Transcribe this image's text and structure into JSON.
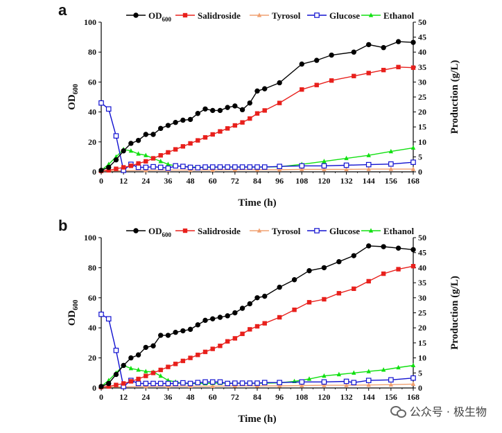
{
  "chart_data": [
    {
      "type": "line",
      "panel_label": "a",
      "xlabel": "Time (h)",
      "ylabel_left": {
        "main": "OD",
        "sub": "600"
      },
      "ylabel_right": "Production (g/L)",
      "xlim": [
        0,
        168
      ],
      "ylim_left": [
        0,
        100
      ],
      "ylim_right": [
        0,
        50
      ],
      "x_ticks": [
        "0",
        "12",
        "24",
        "36",
        "48",
        "60",
        "72",
        "84",
        "96",
        "108",
        "120",
        "132",
        "144",
        "156",
        "168"
      ],
      "y_left_ticks": [
        "0",
        "20",
        "40",
        "60",
        "80",
        "100"
      ],
      "y_right_ticks": [
        "0",
        "5",
        "10",
        "15",
        "20",
        "25",
        "30",
        "35",
        "40",
        "45",
        "50"
      ],
      "legend": [
        {
          "name": "OD",
          "sub": "600",
          "color": "#000000",
          "marker": "circle"
        },
        {
          "name": "Salidroside",
          "color": "#e8201c",
          "marker": "square"
        },
        {
          "name": "Tyrosol",
          "color": "#f0a070",
          "marker": "triangle"
        },
        {
          "name": "Glucose",
          "color": "#1010d0",
          "marker": "open-square"
        },
        {
          "name": "Ethanol",
          "color": "#10e010",
          "marker": "triangle"
        }
      ],
      "series": [
        {
          "name": "OD600",
          "axis": "left",
          "color": "#000000",
          "marker": "circle",
          "x": [
            0,
            4,
            8,
            12,
            16,
            20,
            24,
            28,
            32,
            36,
            40,
            44,
            48,
            52,
            56,
            60,
            64,
            68,
            72,
            76,
            80,
            84,
            88,
            96,
            108,
            116,
            124,
            136,
            144,
            152,
            160,
            168
          ],
          "y": [
            1,
            3,
            8,
            14,
            19,
            21,
            25,
            25,
            29,
            31,
            33,
            34.5,
            35,
            39,
            42,
            41,
            41,
            43,
            44,
            41.5,
            46,
            54,
            55.5,
            59.5,
            72,
            74.5,
            78,
            80,
            85,
            83,
            87,
            86.5
          ]
        },
        {
          "name": "Salidroside",
          "axis": "right",
          "color": "#e8201c",
          "marker": "square",
          "x": [
            0,
            4,
            8,
            12,
            16,
            20,
            24,
            28,
            32,
            36,
            40,
            44,
            48,
            52,
            56,
            60,
            64,
            68,
            72,
            76,
            80,
            84,
            88,
            96,
            108,
            116,
            124,
            136,
            144,
            152,
            160,
            168
          ],
          "y": [
            0.3,
            0.5,
            1,
            1.5,
            2,
            2.8,
            3.5,
            4.5,
            5.5,
            6.5,
            7.5,
            8.5,
            9.5,
            10.5,
            11.5,
            12.5,
            13.5,
            14.5,
            15.5,
            16.5,
            17.8,
            19.5,
            20.5,
            23,
            27.5,
            29,
            30.5,
            32,
            33,
            34,
            35,
            34.8
          ]
        },
        {
          "name": "Tyrosol",
          "axis": "right",
          "color": "#f0a070",
          "marker": "triangle",
          "x": [
            0,
            12,
            24,
            36,
            48,
            60,
            72,
            84,
            96,
            108,
            120,
            132,
            144,
            156,
            168
          ],
          "y": [
            0.2,
            0.4,
            0.5,
            0.6,
            0.6,
            0.6,
            0.7,
            0.7,
            0.7,
            0.8,
            0.8,
            0.8,
            0.9,
            0.9,
            0.9
          ]
        },
        {
          "name": "Glucose",
          "axis": "right",
          "color": "#1010d0",
          "marker": "open-square",
          "x": [
            0,
            4,
            8,
            12,
            16,
            20,
            24,
            28,
            32,
            36,
            40,
            44,
            48,
            52,
            56,
            60,
            64,
            68,
            72,
            76,
            80,
            84,
            88,
            96,
            108,
            120,
            132,
            144,
            156,
            168
          ],
          "y": [
            23,
            21,
            12,
            0.5,
            2.5,
            1.5,
            1.5,
            1.7,
            1.5,
            1.2,
            2,
            1.8,
            1.5,
            1.4,
            1.6,
            1.6,
            1.6,
            1.6,
            1.6,
            1.6,
            1.6,
            1.6,
            1.6,
            1.8,
            2,
            2,
            2.2,
            2.4,
            2.6,
            3.2
          ]
        },
        {
          "name": "Ethanol",
          "axis": "right",
          "color": "#10e010",
          "marker": "triangle",
          "x": [
            0,
            4,
            8,
            12,
            16,
            20,
            24,
            28,
            32,
            36,
            40,
            44,
            48,
            52,
            56,
            60,
            64,
            68,
            72,
            76,
            80,
            84,
            88,
            96,
            108,
            120,
            132,
            144,
            156,
            168
          ],
          "y": [
            0.5,
            2.5,
            5,
            7.5,
            7,
            6,
            5.5,
            4.5,
            3.5,
            2.5,
            2,
            1.8,
            1.6,
            1.5,
            1.5,
            1.5,
            1.6,
            1.6,
            1.6,
            1.6,
            1.6,
            1.6,
            1.6,
            1.7,
            2.5,
            3.5,
            4.5,
            5.5,
            6.8,
            8
          ]
        }
      ]
    },
    {
      "type": "line",
      "panel_label": "b",
      "xlabel": "Time (h)",
      "ylabel_left": {
        "main": "OD",
        "sub": "600"
      },
      "ylabel_right": "Production (g/L)",
      "xlim": [
        0,
        168
      ],
      "ylim_left": [
        0,
        100
      ],
      "ylim_right": [
        0,
        50
      ],
      "x_ticks": [
        "0",
        "12",
        "24",
        "36",
        "48",
        "60",
        "72",
        "84",
        "96",
        "108",
        "120",
        "132",
        "144",
        "156",
        "168"
      ],
      "y_left_ticks": [
        "0",
        "20",
        "40",
        "60",
        "80",
        "100"
      ],
      "y_right_ticks": [
        "0",
        "5",
        "10",
        "15",
        "20",
        "25",
        "30",
        "35",
        "40",
        "45",
        "50"
      ],
      "legend": [
        {
          "name": "OD",
          "sub": "600",
          "color": "#000000",
          "marker": "circle"
        },
        {
          "name": "Salidroside",
          "color": "#e8201c",
          "marker": "square"
        },
        {
          "name": "Tyrosol",
          "color": "#f0a070",
          "marker": "triangle"
        },
        {
          "name": "Glucose",
          "color": "#1010d0",
          "marker": "open-square"
        },
        {
          "name": "Ethanol",
          "color": "#10e010",
          "marker": "triangle"
        }
      ],
      "series": [
        {
          "name": "OD600",
          "axis": "left",
          "color": "#000000",
          "marker": "circle",
          "x": [
            0,
            4,
            8,
            12,
            16,
            20,
            24,
            28,
            32,
            36,
            40,
            44,
            48,
            52,
            56,
            60,
            64,
            68,
            72,
            76,
            80,
            84,
            88,
            96,
            104,
            112,
            120,
            128,
            136,
            144,
            152,
            160,
            168
          ],
          "y": [
            1,
            3,
            9,
            15,
            20,
            22,
            27,
            28,
            35,
            35,
            37,
            38,
            39,
            42,
            45,
            46,
            47,
            48,
            50,
            53,
            56,
            60,
            61,
            67,
            72,
            78,
            80,
            84,
            88,
            94.5,
            94,
            93,
            92
          ]
        },
        {
          "name": "Salidroside",
          "axis": "right",
          "color": "#e8201c",
          "marker": "square",
          "x": [
            0,
            4,
            8,
            12,
            16,
            20,
            24,
            28,
            32,
            36,
            40,
            44,
            48,
            52,
            56,
            60,
            64,
            68,
            72,
            76,
            80,
            84,
            88,
            96,
            104,
            112,
            120,
            128,
            136,
            144,
            152,
            160,
            168
          ],
          "y": [
            0.3,
            0.5,
            1,
            1.5,
            2.2,
            3,
            4,
            5,
            6,
            7,
            8,
            9,
            10,
            11,
            12,
            13,
            14,
            15.5,
            16.5,
            18,
            19.5,
            20.5,
            21.5,
            23.5,
            26,
            28.5,
            29.5,
            31.5,
            33,
            35.5,
            38,
            39.5,
            40.5
          ]
        },
        {
          "name": "Tyrosol",
          "axis": "right",
          "color": "#f0a070",
          "marker": "triangle",
          "x": [
            0,
            12,
            24,
            36,
            48,
            60,
            72,
            84,
            96,
            108,
            120,
            132,
            144,
            156,
            168
          ],
          "y": [
            0.2,
            0.4,
            0.5,
            0.6,
            0.6,
            0.6,
            0.7,
            0.7,
            0.7,
            0.8,
            0.9,
            0.9,
            1,
            1.1,
            1.3
          ]
        },
        {
          "name": "Glucose",
          "axis": "right",
          "color": "#1010d0",
          "marker": "open-square",
          "x": [
            0,
            4,
            8,
            12,
            16,
            20,
            24,
            28,
            32,
            36,
            40,
            44,
            48,
            52,
            56,
            60,
            64,
            68,
            72,
            76,
            80,
            84,
            88,
            96,
            108,
            120,
            132,
            136,
            144,
            156,
            168
          ],
          "y": [
            24.5,
            23,
            12.5,
            0.5,
            2.5,
            1.5,
            1.5,
            1.5,
            1.5,
            1.5,
            1.5,
            1.7,
            1.5,
            1.8,
            2,
            2,
            2,
            1.5,
            1.6,
            1.6,
            1.6,
            1.6,
            1.8,
            1.8,
            2,
            2,
            2.2,
            1.8,
            2.5,
            2.7,
            3.3
          ]
        },
        {
          "name": "Ethanol",
          "axis": "right",
          "color": "#10e010",
          "marker": "triangle",
          "x": [
            0,
            4,
            8,
            12,
            16,
            20,
            24,
            28,
            32,
            36,
            40,
            44,
            48,
            52,
            56,
            60,
            64,
            68,
            72,
            76,
            80,
            84,
            88,
            96,
            104,
            112,
            120,
            128,
            136,
            144,
            152,
            160,
            168
          ],
          "y": [
            0.5,
            2.5,
            5,
            7.5,
            6.5,
            6,
            5.5,
            5.3,
            4,
            2.5,
            2,
            1.5,
            1.5,
            1.5,
            1.5,
            1.6,
            1.6,
            1.6,
            1.6,
            1.6,
            1.6,
            1.6,
            1.6,
            1.7,
            2.2,
            3,
            4,
            4.5,
            5,
            5.5,
            6,
            6.8,
            7.5
          ]
        }
      ]
    }
  ],
  "watermark": {
    "icon": "wechat-icon",
    "text": "公众号 · 极生物"
  }
}
